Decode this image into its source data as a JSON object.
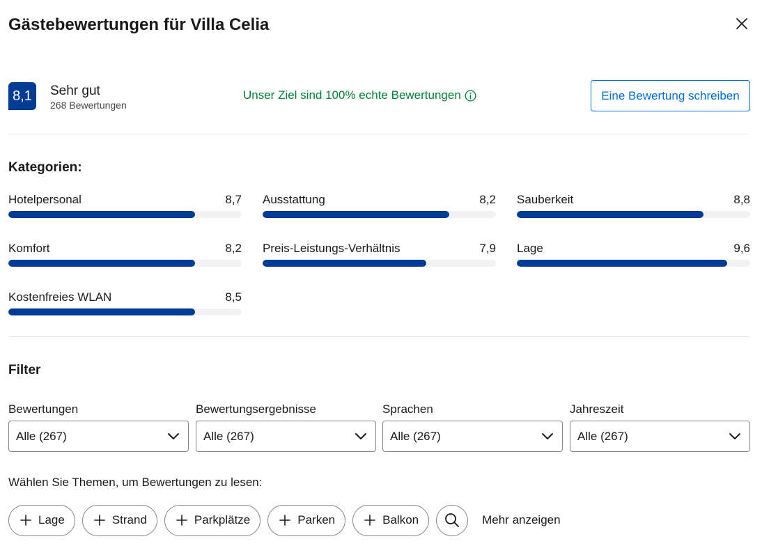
{
  "header": {
    "title": "Gästebewertungen für Villa Celia"
  },
  "summary": {
    "score": "8,1",
    "score_word": "Sehr gut",
    "review_count": "268 Bewertungen",
    "goal_text": "Unser Ziel sind 100% echte Bewertungen",
    "write_button": "Eine Bewertung schreiben"
  },
  "categories": {
    "title": "Kategorien:",
    "items": [
      {
        "label": "Hotelpersonal",
        "value": "8,7",
        "fill_percent": 80
      },
      {
        "label": "Ausstattung",
        "value": "8,2",
        "fill_percent": 80
      },
      {
        "label": "Sauberkeit",
        "value": "8,8",
        "fill_percent": 80
      },
      {
        "label": "Komfort",
        "value": "8,2",
        "fill_percent": 80
      },
      {
        "label": "Preis-Leistungs-Verhältnis",
        "value": "7,9",
        "fill_percent": 70
      },
      {
        "label": "Lage",
        "value": "9,6",
        "fill_percent": 90
      },
      {
        "label": "Kostenfreies WLAN",
        "value": "8,5",
        "fill_percent": 80
      }
    ]
  },
  "filter": {
    "title": "Filter",
    "selects": [
      {
        "label": "Bewertungen",
        "value": "Alle (267)"
      },
      {
        "label": "Bewertungsergebnisse",
        "value": "Alle (267)"
      },
      {
        "label": "Sprachen",
        "value": "Alle (267)"
      },
      {
        "label": "Jahreszeit",
        "value": "Alle (267)"
      }
    ]
  },
  "topics": {
    "label": "Wählen Sie Themen, um Bewertungen zu lesen:",
    "chips": [
      "Lage",
      "Strand",
      "Parkplätze",
      "Parken",
      "Balkon"
    ],
    "more": "Mehr anzeigen"
  },
  "colors": {
    "brand": "#003b95",
    "link": "#006ce4",
    "success": "#008234",
    "track": "#f2f2f2"
  }
}
